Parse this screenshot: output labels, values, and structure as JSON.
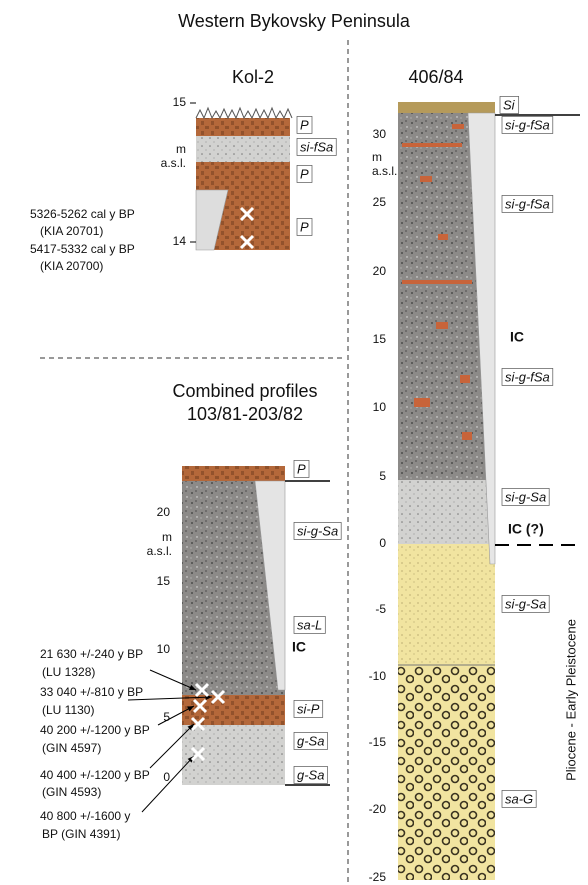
{
  "title": "Western Bykovsky Peninsula",
  "kol2": {
    "title": "Kol-2",
    "ticks": [
      "15",
      "14"
    ],
    "unit": [
      "m",
      "a.s.l."
    ],
    "layers": [
      "P",
      "si-fSa",
      "P",
      "P"
    ],
    "dates": [
      "5326-5262 cal y BP",
      "(KIA 20701)",
      "5417-5332 cal y BP",
      "(KIA 20700)"
    ]
  },
  "combined": {
    "title": [
      "Combined profiles",
      "103/81-203/82"
    ],
    "ticks": [
      "20",
      "15",
      "10",
      "5",
      "0"
    ],
    "unit": [
      "m",
      "a.s.l."
    ],
    "layers": [
      "P",
      "si-g-Sa",
      "sa-L",
      "IC",
      "si-P",
      "g-Sa",
      "g-Sa"
    ],
    "dates": [
      "21 630 +/-240 y BP",
      "(LU 1328)",
      "33 040 +/-810 y BP",
      "(LU 1130)",
      "40 200 +/-1200 y BP",
      "(GIN 4597)",
      "40 400 +/-1200 y BP",
      "(GIN 4593)",
      "40 800 +/-1600 y",
      "BP (GIN 4391)"
    ]
  },
  "p406": {
    "title": "406/84",
    "ticks": [
      "30",
      "25",
      "20",
      "15",
      "10",
      "5",
      "0",
      "-5",
      "-10",
      "-15",
      "-20",
      "-25"
    ],
    "unit": [
      "m",
      "a.s.l."
    ],
    "layers": [
      "Si",
      "si-g-fSa",
      "si-g-fSa",
      "IC",
      "si-g-fSa",
      "si-g-Sa",
      "IC (?)",
      "si-g-Sa",
      "sa-G"
    ],
    "age": "Pliocene - Early Pleistocene"
  }
}
